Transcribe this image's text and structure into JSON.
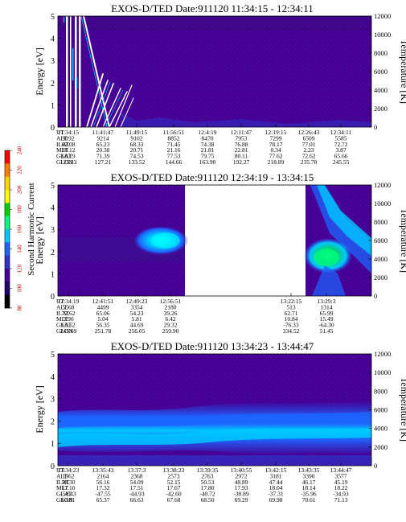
{
  "colorbar": {
    "label": "Second Harmonic Current",
    "ticks": [
      "240",
      "220",
      "200",
      "180",
      "160",
      "140",
      "120",
      "100",
      "80"
    ],
    "colors": [
      "#ff0000",
      "#ff7f00",
      "#ffd700",
      "#ffff00",
      "#00d000",
      "#00ff80",
      "#00c8ff",
      "#1e64ff",
      "#3232c8",
      "#460096",
      "#1e006e",
      "#000000"
    ]
  },
  "chart_data": [
    {
      "type": "heatmap",
      "title": "EXOS-D/TED   Date:911120   11:34:15 - 12:34:11",
      "ylabel": "Energy [eV]",
      "y2label": "Temperature [K]",
      "ylim": [
        0,
        5
      ],
      "y2lim": [
        0,
        12000
      ],
      "yticks": [
        "0",
        "1",
        "2",
        "3",
        "4",
        "5"
      ],
      "y2ticks": [
        "0",
        "2000",
        "4000",
        "6000",
        "8000",
        "10000",
        "12000"
      ],
      "table_labels": [
        "UT",
        "ALT",
        "ILAT",
        "MLT",
        "GLAT",
        "GLON"
      ],
      "columns": [
        {
          "UT": "11:34:15",
          "ALT": "9192",
          "ILAT": "62.08",
          "MLT": "20.12",
          "GLAT": "68.19",
          "GLON": "123.33"
        },
        {
          "UT": "11:41:47",
          "ALT": "9214",
          "ILAT": "65.23",
          "MLT": "20.38",
          "GLAT": "71.39",
          "GLON": "127.21"
        },
        {
          "UT": "11:49:15",
          "ALT": "9102",
          "ILAT": "68.33",
          "MLT": "20.71",
          "GLAT": "74.53",
          "GLON": "133.52"
        },
        {
          "UT": "11:56:51",
          "ALT": "8852",
          "ILAT": "71.45",
          "MLT": "21.16",
          "GLAT": "77.53",
          "GLON": "144.66"
        },
        {
          "UT": "12:4:19",
          "ALT": "8470",
          "ILAT": "74.38",
          "MLT": "21.81",
          "GLAT": "79.75",
          "GLON": "163.90"
        },
        {
          "UT": "12:11:47",
          "ALT": "7953",
          "ILAT": "76.88",
          "MLT": "22.81",
          "GLAT": "80.11",
          "GLON": "192.27"
        },
        {
          "UT": "12:19:15",
          "ALT": "7299",
          "ILAT": "78.17",
          "MLT": "0.34",
          "GLAT": "77.62",
          "GLON": "218.89"
        },
        {
          "UT": "12:26:43",
          "ALT": "6509",
          "ILAT": "77.01",
          "MLT": "2.23",
          "GLAT": "72.62",
          "GLON": "235.78"
        },
        {
          "UT": "12:34:11",
          "ALT": "5585",
          "ILAT": "72.72",
          "MLT": "3.87",
          "GLAT": "65.66",
          "GLON": "245.55"
        }
      ]
    },
    {
      "type": "heatmap",
      "title": "EXOS-D/TED   Date:911120   12:34:19 - 13:34:15",
      "ylabel": "Energy [eV]",
      "y2label": "Temperature [K]",
      "ylim": [
        0,
        5
      ],
      "y2lim": [
        0,
        12000
      ],
      "yticks": [
        "0",
        "1",
        "2",
        "3",
        "4",
        "5"
      ],
      "y2ticks": [
        "0",
        "2000",
        "4000",
        "6000",
        "8000",
        "10000",
        "12000"
      ],
      "table_labels": [
        "UT",
        "ALT",
        "ILAT",
        "MLT",
        "GLAT",
        "GLON"
      ],
      "columns": [
        {
          "UT": "12:34:19",
          "ALT": "5568",
          "ILAT": "72.62",
          "MLT": "3.90",
          "GLAT": "65.52",
          "GLON": "245.69"
        },
        {
          "UT": "12:41:51",
          "ALT": "4499",
          "ILAT": "65.06",
          "MLT": "5.04",
          "GLAT": "56.35",
          "GLON": "251.78"
        },
        {
          "UT": "12:49:23",
          "ALT": "3354",
          "ILAT": "54.23",
          "MLT": "5.81",
          "GLAT": "44.69",
          "GLON": "256.05"
        },
        {
          "UT": "12:56:51",
          "ALT": "2180",
          "ILAT": "39.26",
          "MLT": "6.42",
          "GLAT": "29.32",
          "GLON": "259.90"
        },
        {
          "UT": "13:22:15",
          "ALT": "513",
          "ILAT": "62.71",
          "MLT": "10.84",
          "GLAT": "-76.33",
          "GLON": "334.52"
        },
        {
          "UT": "13:29:3",
          "ALT": "1314",
          "ILAT": "65.99",
          "MLT": "15.49",
          "GLAT": "-64.30",
          "GLON": "51.45"
        }
      ]
    },
    {
      "type": "heatmap",
      "title": "EXOS-D/TED   Date:911120   13:34:23 - 13:44:47",
      "ylabel": "Energy [eV]",
      "y2label": "Temperature [K]",
      "ylim": [
        0,
        5
      ],
      "y2lim": [
        0,
        12000
      ],
      "yticks": [
        "0",
        "1",
        "2",
        "3",
        "4",
        "5"
      ],
      "y2ticks": [
        "0",
        "2000",
        "4000",
        "6000",
        "8000",
        "10000",
        "12000"
      ],
      "table_labels": [
        "UT",
        "ALT",
        "ILAT",
        "MLT",
        "GLAT",
        "GLON"
      ],
      "columns": [
        {
          "UT": "13:34:23",
          "ALT": "1962",
          "ILAT": "58.30",
          "MLT": "17.10",
          "GLAT": "-50.43",
          "GLON": "63.81"
        },
        {
          "UT": "13:35:43",
          "ALT": "2164",
          "ILAT": "56.16",
          "MLT": "17.32",
          "GLAT": "-47.55",
          "GLON": "65.37"
        },
        {
          "UT": "13:37:3",
          "ALT": "2368",
          "ILAT": "54.09",
          "MLT": "17.51",
          "GLAT": "-44.93",
          "GLON": "66.63"
        },
        {
          "UT": "13:38:23",
          "ALT": "2573",
          "ILAT": "52.15",
          "MLT": "17.67",
          "GLAT": "-42.60",
          "GLON": "67.68"
        },
        {
          "UT": "13:39:35",
          "ALT": "2763",
          "ILAT": "50.53",
          "MLT": "17.80",
          "GLAT": "-40.72",
          "GLON": "68.50"
        },
        {
          "UT": "13:40:55",
          "ALT": "2972",
          "ILAT": "48.89",
          "MLT": "17.93",
          "GLAT": "-38.89",
          "GLON": "69.29"
        },
        {
          "UT": "13:42:15",
          "ALT": "3181",
          "ILAT": "47.44",
          "MLT": "18.04",
          "GLAT": "-37.31",
          "GLON": "69.98"
        },
        {
          "UT": "13:43:35",
          "ALT": "3390",
          "ILAT": "46.17",
          "MLT": "18.14",
          "GLAT": "-35.96",
          "GLON": "70.61"
        },
        {
          "UT": "13:44:47",
          "ALT": "3577",
          "ILAT": "45.19",
          "MLT": "18.22",
          "GLAT": "-34.93",
          "GLON": "71.13"
        }
      ]
    }
  ]
}
